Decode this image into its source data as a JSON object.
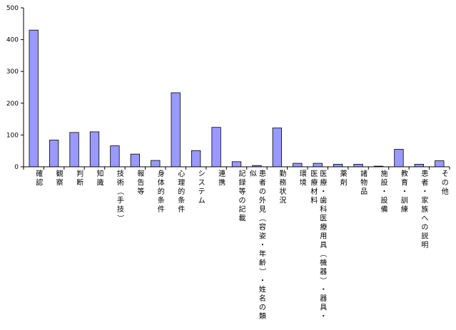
{
  "chart_data": {
    "type": "bar",
    "title": "",
    "xlabel": "",
    "ylabel": "",
    "ylim": [
      0,
      500
    ],
    "yticks": [
      0,
      100,
      200,
      300,
      400,
      500
    ],
    "grid": false,
    "legend": "none",
    "bar_color": "#9999ff",
    "bar_edge_color": "#000000",
    "categories": [
      "確認",
      "観察",
      "判断",
      "知識",
      "技術（手技）",
      "報告等",
      "身体的条件",
      "心理的条件",
      "システム",
      "連携",
      "記録等の記載",
      "患者の外見（容姿・年齢）・姓名の類似",
      "勤務状況",
      "環境",
      "医療・歯科医療用具（機器）・器具・医療材料",
      "薬剤",
      "諸物品",
      "施設・設備",
      "教育・訓練",
      "患者・家族への説明",
      "その他"
    ],
    "values": [
      430,
      84,
      108,
      110,
      66,
      40,
      20,
      233,
      51,
      124,
      16,
      4,
      122,
      11,
      11,
      8,
      8,
      2,
      55,
      8,
      19
    ]
  }
}
